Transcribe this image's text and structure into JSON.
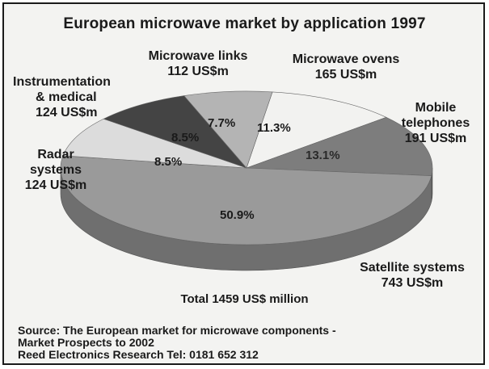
{
  "chart_data": {
    "type": "pie",
    "title": "European microwave market by application 1997",
    "unit": "US$m",
    "slices": [
      {
        "name": "Microwave ovens",
        "value": 165,
        "value_label": "165 US$m",
        "percent_label": "11.3%",
        "color": "#f2f2f0"
      },
      {
        "name": "Mobile telephones",
        "value": 191,
        "value_label": "191 US$m",
        "percent_label": "13.1%",
        "color": "#7d7d7d"
      },
      {
        "name": "Satellite systems",
        "value": 743,
        "value_label": "743 US$m",
        "percent_label": "50.9%",
        "color": "#9a9a9a"
      },
      {
        "name": "Radar systems",
        "value": 124,
        "value_label": "124 US$m",
        "percent_label": "8.5%",
        "color": "#dcdcdc"
      },
      {
        "name": "Instrumentation & medical",
        "value": 124,
        "value_label": "124 US$m",
        "percent_label": "8.5%",
        "color": "#444444"
      },
      {
        "name": "Microwave links",
        "value": 112,
        "value_label": "112 US$m",
        "percent_label": "7.7%",
        "color": "#b4b4b4"
      }
    ],
    "total": "Total 1459 US$ million"
  },
  "labels": {
    "microwave_links": "Microwave links",
    "microwave_ovens": "Microwave ovens",
    "instrumentation_1": "Instrumentation",
    "instrumentation_2": "& medical",
    "mobile_1": "Mobile",
    "mobile_2": "telephones",
    "radar_1": "Radar",
    "radar_2": "systems",
    "satellite": "Satellite systems"
  },
  "source": {
    "line1": "Source: The European market for microwave components -",
    "line2": "Market Prospects to 2002",
    "line3": "Reed Electronics Research   Tel: 0181 652 312"
  }
}
